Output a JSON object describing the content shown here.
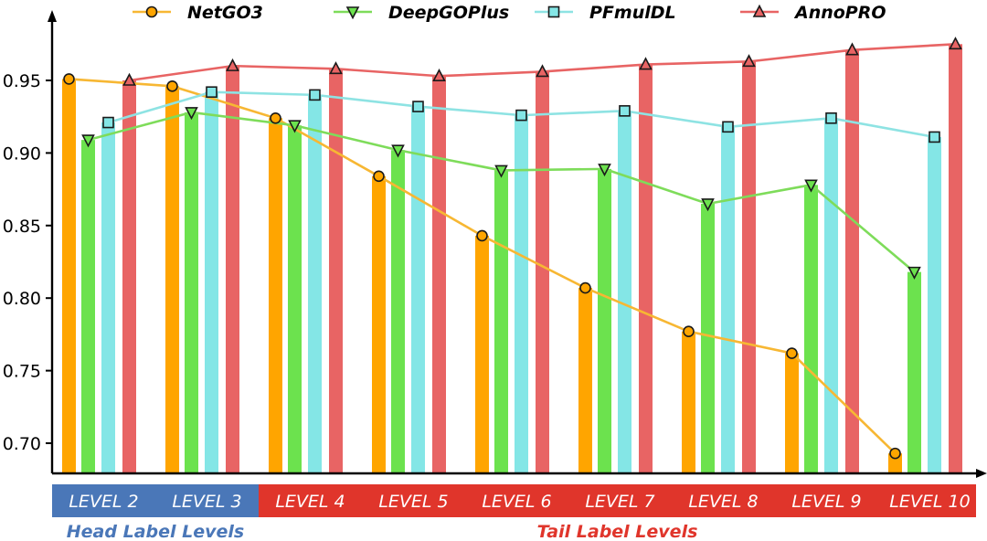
{
  "chart_data": {
    "type": "bar",
    "categories": [
      "LEVEL 2",
      "LEVEL 3",
      "LEVEL 4",
      "LEVEL 5",
      "LEVEL 6",
      "LEVEL 7",
      "LEVEL 8",
      "LEVEL 9",
      "LEVEL 10"
    ],
    "series": [
      {
        "name": "NetGO3",
        "values": [
          0.951,
          0.946,
          0.924,
          0.884,
          0.843,
          0.807,
          0.777,
          0.762,
          0.693
        ],
        "color": "#FFA500",
        "line_color": "#F7B733",
        "marker": "circle"
      },
      {
        "name": "DeepGOPlus",
        "values": [
          0.909,
          0.928,
          0.919,
          0.902,
          0.888,
          0.889,
          0.865,
          0.878,
          0.818
        ],
        "color": "#6CE24E",
        "line_color": "#7EDC5A",
        "marker": "triangle-down"
      },
      {
        "name": "PFmulDL",
        "values": [
          0.921,
          0.942,
          0.94,
          0.932,
          0.926,
          0.929,
          0.918,
          0.924,
          0.911
        ],
        "color": "#84E6E6",
        "line_color": "#8EE3E3",
        "marker": "square"
      },
      {
        "name": "AnnoPRO",
        "values": [
          0.95,
          0.96,
          0.958,
          0.953,
          0.956,
          0.961,
          0.963,
          0.971,
          0.975
        ],
        "color": "#E86464",
        "line_color": "#E86464",
        "marker": "triangle-up"
      }
    ],
    "yticks": [
      "0.70",
      "0.75",
      "0.80",
      "0.85",
      "0.90",
      "0.95"
    ],
    "ylim": [
      0.68,
      0.98
    ],
    "category_groups": [
      {
        "label": "Head Label Levels",
        "categories": [
          "LEVEL 2",
          "LEVEL 3"
        ],
        "color": "#4A77B8",
        "text_color": "#4A77B8"
      },
      {
        "label": "Tail Label Levels",
        "categories": [
          "LEVEL 4",
          "LEVEL 5",
          "LEVEL 6",
          "LEVEL 7",
          "LEVEL 8",
          "LEVEL 9",
          "LEVEL 10"
        ],
        "color": "#E0352B",
        "text_color": "#E0352B"
      }
    ],
    "legend_position": "top",
    "grid": false
  }
}
